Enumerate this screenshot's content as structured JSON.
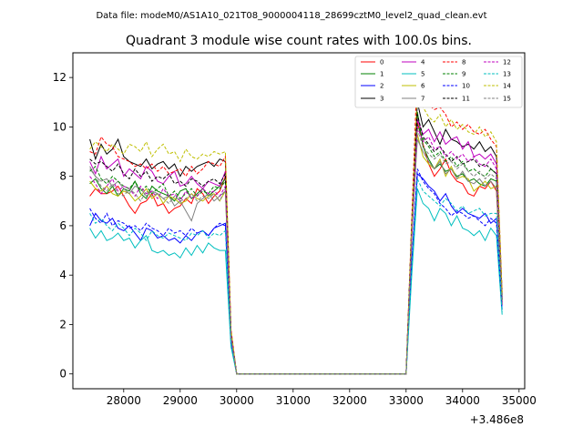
{
  "chart_data": {
    "type": "line",
    "suptitle": "Data file: modeM0/AS1A10_021T08_9000004118_28699cztM0_level2_quad_clean.evt",
    "title": "Quadrant 3 module wise count rates with 100.0s bins.",
    "xlabel": "",
    "ylabel": "",
    "x_offset_label": "+3.486e8",
    "xlim": [
      27100,
      35100
    ],
    "ylim": [
      -0.6,
      13.0
    ],
    "xticks": [
      28000,
      29000,
      30000,
      31000,
      32000,
      33000,
      34000,
      35000
    ],
    "yticks": [
      0,
      2,
      4,
      6,
      8,
      10,
      12
    ],
    "grid": false,
    "legend_position": "top-right",
    "x": [
      27400,
      27500,
      27600,
      27700,
      27800,
      27900,
      28000,
      28100,
      28200,
      28300,
      28400,
      28500,
      28600,
      28700,
      28800,
      28900,
      29000,
      29100,
      29200,
      29300,
      29400,
      29500,
      29600,
      29700,
      29800,
      29900,
      30000,
      31000,
      32000,
      33000,
      33100,
      33200,
      33300,
      33400,
      33500,
      33600,
      33700,
      33800,
      33900,
      34000,
      34100,
      34200,
      34300,
      34400,
      34500,
      34600,
      34700
    ],
    "series": [
      {
        "name": "0",
        "color": "#ff0000",
        "dash": "solid",
        "values": [
          7.2,
          7.5,
          7.3,
          7.3,
          7.4,
          7.6,
          7.2,
          6.8,
          6.5,
          6.9,
          7.0,
          7.3,
          6.8,
          6.9,
          6.5,
          6.7,
          6.8,
          7.1,
          6.9,
          7.5,
          7.3,
          6.9,
          7.2,
          7.4,
          8.0,
          1.5,
          0.0,
          0.0,
          0.0,
          0.0,
          5.5,
          10.2,
          9.3,
          8.5,
          8.0,
          8.3,
          8.7,
          8.1,
          7.8,
          7.7,
          7.3,
          7.2,
          7.6,
          7.5,
          7.8,
          7.4,
          2.8
        ]
      },
      {
        "name": "1",
        "color": "#008000",
        "dash": "solid",
        "values": [
          7.7,
          7.9,
          7.5,
          7.3,
          7.6,
          7.2,
          7.5,
          7.4,
          7.8,
          7.3,
          7.1,
          7.6,
          7.4,
          7.3,
          7.2,
          7.0,
          7.4,
          7.5,
          7.1,
          7.3,
          7.5,
          7.2,
          7.4,
          7.6,
          7.9,
          1.6,
          0.0,
          0.0,
          0.0,
          0.0,
          5.8,
          10.6,
          9.2,
          8.7,
          8.3,
          8.5,
          8.2,
          8.3,
          8.0,
          8.1,
          7.8,
          7.9,
          7.7,
          7.6,
          7.9,
          7.8,
          3.0
        ]
      },
      {
        "name": "2",
        "color": "#0000ff",
        "dash": "solid",
        "values": [
          6.0,
          6.5,
          6.2,
          6.1,
          6.3,
          5.9,
          5.8,
          6.0,
          5.7,
          5.4,
          5.9,
          5.8,
          5.5,
          5.6,
          5.4,
          5.5,
          5.3,
          5.6,
          5.4,
          5.7,
          5.8,
          5.6,
          5.9,
          6.0,
          6.1,
          1.3,
          0.0,
          0.0,
          0.0,
          0.0,
          4.5,
          8.1,
          7.9,
          7.6,
          7.4,
          7.0,
          7.3,
          6.8,
          6.5,
          6.7,
          6.5,
          6.4,
          6.3,
          6.5,
          6.1,
          6.3,
          2.6
        ]
      },
      {
        "name": "3",
        "color": "#000000",
        "dash": "solid",
        "values": [
          9.5,
          8.7,
          9.3,
          8.9,
          9.1,
          9.5,
          8.8,
          8.6,
          8.5,
          8.4,
          8.7,
          8.3,
          8.5,
          8.6,
          8.3,
          8.5,
          8.0,
          8.4,
          8.2,
          8.4,
          8.5,
          8.6,
          8.4,
          8.7,
          8.6,
          1.7,
          0.0,
          0.0,
          0.0,
          0.0,
          6.0,
          11.0,
          10.0,
          10.3,
          9.8,
          9.3,
          9.9,
          9.5,
          9.4,
          9.2,
          9.3,
          9.1,
          9.4,
          9.0,
          9.2,
          8.8,
          3.2
        ]
      },
      {
        "name": "4",
        "color": "#bf00bf",
        "dash": "solid",
        "values": [
          8.6,
          8.1,
          8.8,
          8.3,
          8.5,
          8.7,
          8.0,
          8.3,
          8.1,
          7.9,
          8.4,
          8.2,
          7.8,
          7.7,
          8.0,
          8.2,
          7.6,
          7.7,
          8.0,
          7.7,
          7.5,
          7.8,
          7.7,
          7.6,
          8.2,
          1.6,
          0.0,
          0.0,
          0.0,
          0.0,
          5.9,
          10.3,
          9.7,
          9.9,
          9.4,
          9.8,
          9.3,
          9.5,
          9.6,
          9.1,
          9.4,
          8.8,
          8.9,
          8.7,
          8.9,
          8.5,
          3.0
        ]
      },
      {
        "name": "5",
        "color": "#00bfbf",
        "dash": "solid",
        "values": [
          5.9,
          5.5,
          5.8,
          5.4,
          5.5,
          5.7,
          5.4,
          5.5,
          5.1,
          5.4,
          5.6,
          5.0,
          4.9,
          5.0,
          4.8,
          4.9,
          4.7,
          5.1,
          4.8,
          5.2,
          4.9,
          5.3,
          5.1,
          5.0,
          5.0,
          1.1,
          0.0,
          0.0,
          0.0,
          0.0,
          4.0,
          7.5,
          6.9,
          6.7,
          6.2,
          6.7,
          6.5,
          6.0,
          6.4,
          5.9,
          5.8,
          5.6,
          5.8,
          5.4,
          5.9,
          5.6,
          2.4
        ]
      },
      {
        "name": "6",
        "color": "#bfbf00",
        "dash": "solid",
        "values": [
          7.8,
          7.5,
          7.4,
          7.6,
          7.3,
          7.2,
          7.4,
          7.3,
          7.0,
          7.2,
          7.5,
          7.1,
          7.3,
          6.9,
          7.2,
          7.1,
          6.9,
          7.0,
          7.3,
          7.1,
          7.0,
          7.2,
          7.3,
          7.0,
          7.4,
          1.5,
          0.0,
          0.0,
          0.0,
          0.0,
          5.6,
          9.7,
          8.8,
          8.5,
          8.3,
          8.7,
          8.0,
          8.4,
          7.9,
          8.0,
          7.9,
          7.4,
          7.6,
          7.8,
          7.5,
          7.6,
          2.9
        ]
      },
      {
        "name": "7",
        "color": "#808080",
        "dash": "solid",
        "values": [
          8.3,
          8.0,
          7.8,
          7.9,
          7.6,
          7.8,
          7.5,
          7.3,
          7.6,
          7.5,
          7.2,
          7.4,
          7.3,
          7.1,
          7.2,
          6.8,
          7.0,
          6.6,
          6.2,
          6.9,
          7.1,
          7.3,
          7.0,
          7.2,
          7.4,
          1.5,
          0.0,
          0.0,
          0.0,
          0.0,
          5.7,
          9.5,
          9.0,
          8.6,
          8.3,
          8.6,
          8.1,
          8.3,
          7.9,
          8.2,
          7.8,
          7.7,
          7.9,
          7.6,
          7.8,
          7.5,
          2.9
        ]
      },
      {
        "name": "8",
        "color": "#ff0000",
        "dash": "dashed",
        "values": [
          9.0,
          8.9,
          9.6,
          9.3,
          9.2,
          8.8,
          8.7,
          8.6,
          8.4,
          8.5,
          8.3,
          8.5,
          8.2,
          8.4,
          8.1,
          8.2,
          8.3,
          8.0,
          8.4,
          8.1,
          8.3,
          8.6,
          8.5,
          8.4,
          8.8,
          1.8,
          0.0,
          0.0,
          0.0,
          0.0,
          6.3,
          12.4,
          11.2,
          10.9,
          10.7,
          10.8,
          10.5,
          10.0,
          10.2,
          9.9,
          10.1,
          9.8,
          9.7,
          9.9,
          9.5,
          9.2,
          3.3
        ]
      },
      {
        "name": "9",
        "color": "#008000",
        "dash": "dashed",
        "values": [
          8.2,
          8.4,
          7.9,
          7.7,
          8.0,
          7.8,
          7.6,
          7.5,
          7.8,
          7.4,
          7.6,
          7.3,
          7.5,
          7.7,
          7.2,
          7.4,
          7.1,
          7.3,
          7.5,
          7.2,
          7.4,
          7.3,
          7.6,
          7.5,
          7.8,
          1.6,
          0.0,
          0.0,
          0.0,
          0.0,
          5.9,
          10.1,
          9.5,
          9.2,
          8.8,
          9.0,
          8.6,
          8.8,
          8.4,
          8.6,
          8.2,
          8.3,
          8.1,
          8.0,
          8.3,
          8.1,
          3.0
        ]
      },
      {
        "name": "10",
        "color": "#0000ff",
        "dash": "dashed",
        "values": [
          6.7,
          6.3,
          6.1,
          6.5,
          6.0,
          6.2,
          6.1,
          5.9,
          6.0,
          5.8,
          6.1,
          5.9,
          5.8,
          5.6,
          5.9,
          5.7,
          5.8,
          5.6,
          5.9,
          5.7,
          5.8,
          5.6,
          5.9,
          6.1,
          6.0,
          1.3,
          0.0,
          0.0,
          0.0,
          0.0,
          4.6,
          8.3,
          7.8,
          7.5,
          7.3,
          6.9,
          6.7,
          6.4,
          6.6,
          6.5,
          6.3,
          6.4,
          6.2,
          6.0,
          6.3,
          6.1,
          2.6
        ]
      },
      {
        "name": "11",
        "color": "#000000",
        "dash": "dashed",
        "values": [
          8.7,
          8.5,
          8.6,
          8.4,
          8.2,
          8.5,
          8.1,
          7.9,
          8.3,
          8.0,
          8.2,
          7.8,
          8.0,
          7.9,
          8.1,
          7.7,
          7.8,
          7.6,
          7.9,
          7.8,
          7.6,
          7.8,
          7.9,
          7.7,
          8.1,
          1.6,
          0.0,
          0.0,
          0.0,
          0.0,
          6.0,
          10.5,
          9.6,
          9.3,
          9.0,
          9.2,
          8.9,
          8.6,
          8.8,
          8.5,
          8.6,
          8.7,
          8.4,
          8.5,
          8.3,
          8.1,
          3.0
        ]
      },
      {
        "name": "12",
        "color": "#bf00bf",
        "dash": "dashed",
        "values": [
          8.0,
          7.7,
          7.3,
          7.6,
          7.9,
          7.4,
          7.6,
          7.5,
          7.2,
          7.6,
          7.3,
          7.4,
          7.1,
          7.5,
          7.2,
          7.3,
          7.0,
          7.4,
          7.1,
          7.2,
          7.5,
          7.3,
          7.4,
          7.2,
          7.6,
          1.6,
          0.0,
          0.0,
          0.0,
          0.0,
          5.8,
          10.0,
          9.4,
          9.6,
          9.1,
          9.2,
          8.8,
          9.0,
          8.7,
          8.9,
          8.6,
          8.8,
          8.5,
          8.4,
          8.7,
          8.3,
          2.9
        ]
      },
      {
        "name": "13",
        "color": "#00bfbf",
        "dash": "dashed",
        "values": [
          6.5,
          6.1,
          6.3,
          6.0,
          5.8,
          6.1,
          5.9,
          5.6,
          5.9,
          5.7,
          5.4,
          5.8,
          5.6,
          5.5,
          5.7,
          5.6,
          5.5,
          5.4,
          5.7,
          5.6,
          5.8,
          5.5,
          5.7,
          5.6,
          5.8,
          1.2,
          0.0,
          0.0,
          0.0,
          0.0,
          4.3,
          7.9,
          7.4,
          7.2,
          7.0,
          6.8,
          7.1,
          6.9,
          6.6,
          6.8,
          6.5,
          6.6,
          6.7,
          6.4,
          6.5,
          6.5,
          2.5
        ]
      },
      {
        "name": "14",
        "color": "#bfbf00",
        "dash": "dashed",
        "values": [
          9.1,
          9.4,
          9.2,
          9.0,
          9.3,
          9.1,
          8.9,
          9.3,
          9.2,
          9.0,
          9.4,
          8.8,
          9.1,
          9.3,
          8.9,
          9.0,
          8.6,
          9.1,
          8.8,
          8.7,
          8.9,
          8.8,
          9.0,
          8.9,
          9.0,
          1.8,
          0.0,
          0.0,
          0.0,
          0.0,
          6.2,
          11.5,
          10.8,
          10.4,
          10.2,
          10.5,
          10.0,
          10.3,
          9.9,
          10.1,
          9.8,
          9.7,
          10.0,
          9.6,
          9.8,
          9.4,
          3.2
        ]
      },
      {
        "name": "15",
        "color": "#808080",
        "dash": "dashed",
        "values": [
          8.4,
          8.0,
          7.6,
          7.4,
          7.7,
          7.3,
          7.2,
          7.5,
          7.3,
          7.0,
          7.4,
          7.2,
          7.3,
          7.1,
          6.9,
          7.2,
          7.0,
          7.1,
          7.3,
          7.0,
          7.2,
          7.1,
          7.3,
          7.0,
          7.5,
          1.5,
          0.0,
          0.0,
          0.0,
          0.0,
          5.6,
          9.9,
          9.2,
          8.9,
          8.7,
          8.9,
          8.5,
          8.6,
          8.3,
          8.5,
          8.2,
          8.0,
          8.2,
          7.9,
          8.1,
          7.9,
          2.9
        ]
      }
    ]
  }
}
